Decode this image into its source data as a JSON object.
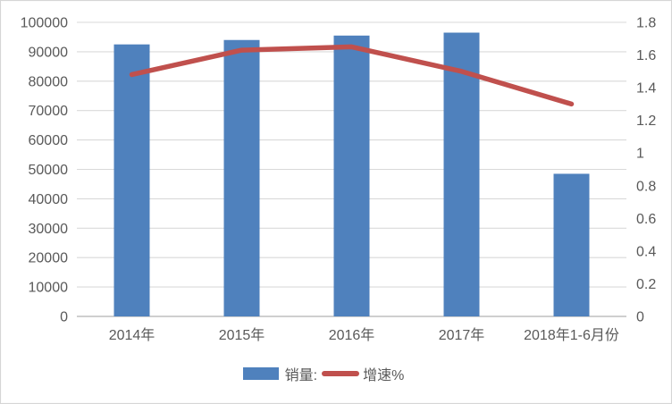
{
  "window": {
    "background": "#FFFFFF",
    "border_color": "#D6D6D6"
  },
  "chart_data": {
    "type": "combo-bar-line",
    "title": "",
    "categories": [
      "2014年",
      "2015年",
      "2016年",
      "2017年",
      "2018年1-6月份"
    ],
    "series": [
      {
        "name": "销量:",
        "type": "bar",
        "axis": "left",
        "color": "#4F81BD",
        "values": [
          92500,
          94000,
          95500,
          96500,
          48500
        ]
      },
      {
        "name": "增速%",
        "type": "line",
        "axis": "right",
        "color": "#C0504D",
        "values": [
          1.48,
          1.63,
          1.65,
          1.5,
          1.3
        ]
      }
    ],
    "left_axis": {
      "min": 0,
      "max": 100000,
      "step": 10000,
      "tick_labels": [
        "100000",
        "90000",
        "80000",
        "70000",
        "60000",
        "50000",
        "40000",
        "30000",
        "20000",
        "10000",
        "0"
      ]
    },
    "right_axis": {
      "min": 0,
      "max": 1.8,
      "step": 0.2,
      "tick_labels": [
        "1.8",
        "1.6",
        "1.4",
        "1.2",
        "1",
        "0.8",
        "0.6",
        "0.4",
        "0.2",
        "0"
      ]
    },
    "grid": "horizontal",
    "legend_position": "bottom",
    "styles": {
      "grid_color": "#D9D9D9",
      "axis_color": "#BFBFBF",
      "label_color": "#595959",
      "tick_font_size": 16
    }
  }
}
